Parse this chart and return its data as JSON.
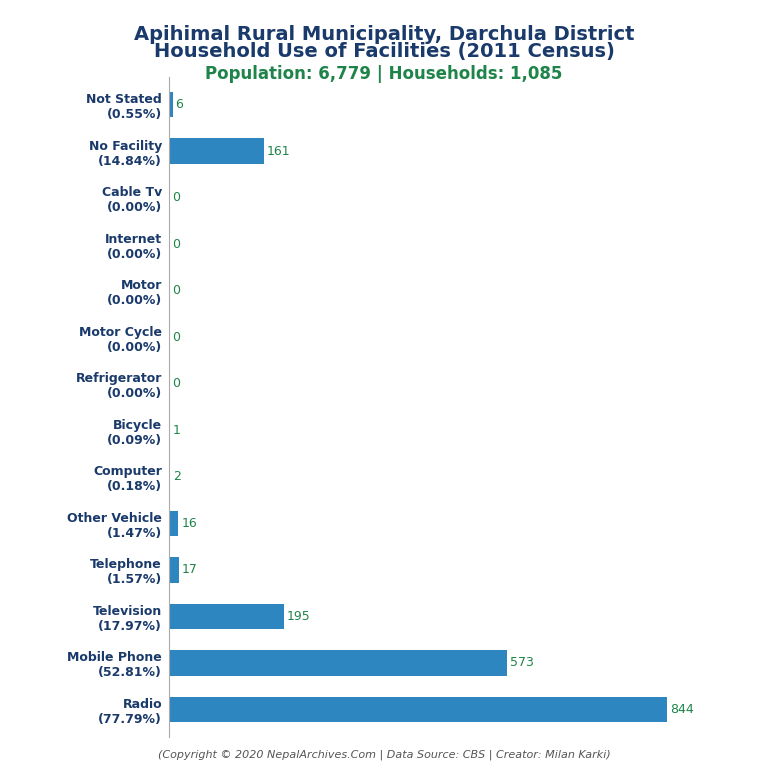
{
  "title_line1": "Apihimal Rural Municipality, Darchula District",
  "title_line2": "Household Use of Facilities (2011 Census)",
  "subtitle": "Population: 6,779 | Households: 1,085",
  "footer": "(Copyright © 2020 NepalArchives.Com | Data Source: CBS | Creator: Milan Karki)",
  "categories": [
    "Not Stated\n(0.55%)",
    "No Facility\n(14.84%)",
    "Cable Tv\n(0.00%)",
    "Internet\n(0.00%)",
    "Motor\n(0.00%)",
    "Motor Cycle\n(0.00%)",
    "Refrigerator\n(0.00%)",
    "Bicycle\n(0.09%)",
    "Computer\n(0.18%)",
    "Other Vehicle\n(1.47%)",
    "Telephone\n(1.57%)",
    "Television\n(17.97%)",
    "Mobile Phone\n(52.81%)",
    "Radio\n(77.79%)"
  ],
  "values": [
    6,
    161,
    0,
    0,
    0,
    0,
    0,
    1,
    2,
    16,
    17,
    195,
    573,
    844
  ],
  "bar_color": "#2e86c1",
  "title_color": "#1a3a6b",
  "subtitle_color": "#1e8449",
  "value_color": "#1e8449",
  "footer_color": "#555555",
  "background_color": "#ffffff",
  "title_fontsize": 14,
  "subtitle_fontsize": 12,
  "label_fontsize": 9,
  "value_fontsize": 9,
  "footer_fontsize": 8,
  "xlim": [
    0,
    950
  ]
}
